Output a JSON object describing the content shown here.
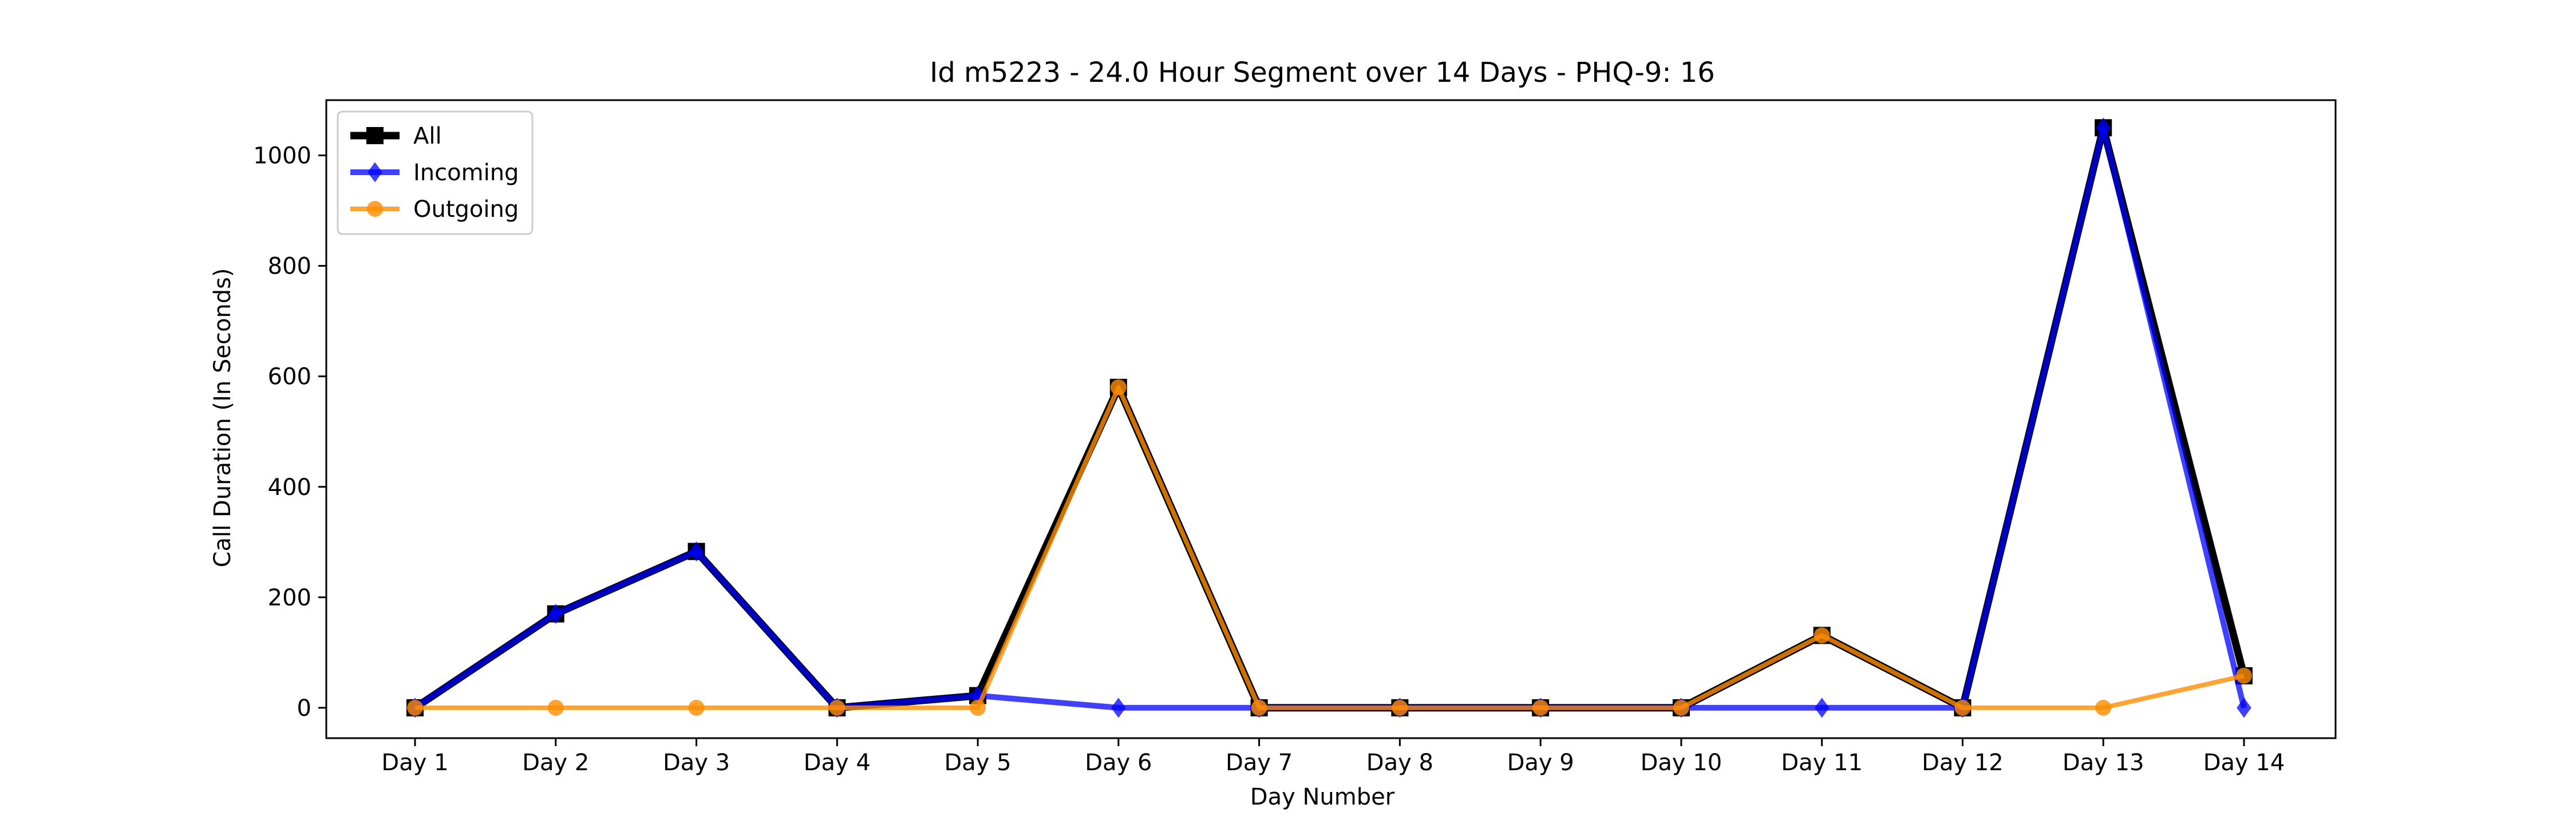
{
  "chart_data": {
    "type": "line",
    "title": "Id m5223 - 24.0 Hour Segment over 14 Days - PHQ-9: 16",
    "xlabel": "Day Number",
    "ylabel": "Call Duration (In Seconds)",
    "categories": [
      "Day 1",
      "Day 2",
      "Day 3",
      "Day 4",
      "Day 5",
      "Day 6",
      "Day 7",
      "Day 8",
      "Day 9",
      "Day 10",
      "Day 11",
      "Day 12",
      "Day 13",
      "Day 14"
    ],
    "ylim": [
      -55,
      1100
    ],
    "yticks": [
      0,
      200,
      400,
      600,
      800,
      1000
    ],
    "ytick_labels": [
      "0",
      "200",
      "400",
      "600",
      "800",
      "1000"
    ],
    "grid": false,
    "legend_position": "top-left",
    "series": [
      {
        "name": "All",
        "color": "#000000",
        "marker": "square",
        "values": [
          0,
          170,
          283,
          0,
          22,
          580,
          0,
          0,
          0,
          0,
          131,
          0,
          1050,
          58
        ]
      },
      {
        "name": "Incoming",
        "color": "#0000ff",
        "marker": "diamond",
        "values": [
          0,
          170,
          283,
          0,
          22,
          0,
          0,
          0,
          0,
          0,
          0,
          0,
          1050,
          0
        ]
      },
      {
        "name": "Outgoing",
        "color": "#ff8c00",
        "marker": "circle",
        "values": [
          0,
          0,
          0,
          0,
          0,
          580,
          0,
          0,
          0,
          0,
          131,
          0,
          0,
          58
        ]
      }
    ]
  }
}
